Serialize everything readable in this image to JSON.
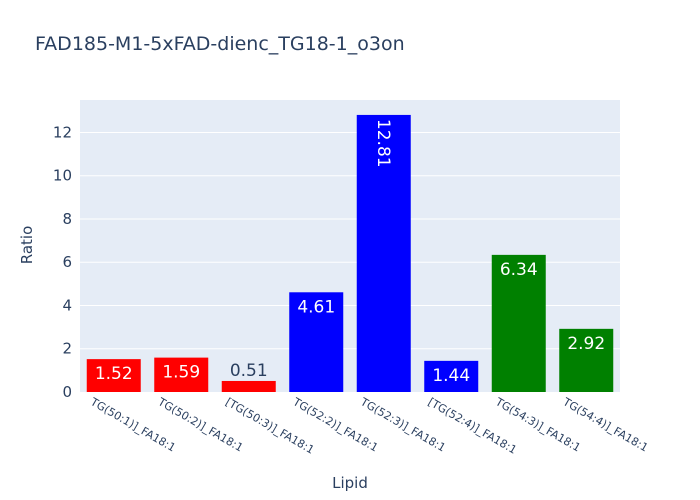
{
  "chart_data": {
    "type": "bar",
    "title": "FAD185-M1-5xFAD-dienc_TG18-1_o3on",
    "xlabel": "Lipid",
    "ylabel": "Ratio",
    "ylim": [
      0,
      13.5
    ],
    "yticks": [
      0,
      2,
      4,
      6,
      8,
      10,
      12
    ],
    "grid": true,
    "plot_background": "#e5ecf6",
    "categories": [
      "TG(50:1)]_FA18:1",
      "TG(50:2)]_FA18:1",
      "[TG(50:3)]_FA18:1",
      "TG(52:2)]_FA18:1",
      "TG(52:3)]_FA18:1",
      "[TG(52:4)]_FA18:1",
      "TG(54:3)]_FA18:1",
      "TG(54:4)]_FA18:1"
    ],
    "values": [
      1.52,
      1.59,
      0.51,
      4.61,
      12.81,
      1.44,
      6.34,
      2.92
    ],
    "labels": [
      "1.52",
      "1.59",
      "0.51",
      "4.61",
      "12.81",
      "1.44",
      "6.34",
      "2.92"
    ],
    "colors": [
      "#ff0000",
      "#ff0000",
      "#ff0000",
      "#0000ff",
      "#0000ff",
      "#0000ff",
      "#008000",
      "#008000"
    ]
  }
}
